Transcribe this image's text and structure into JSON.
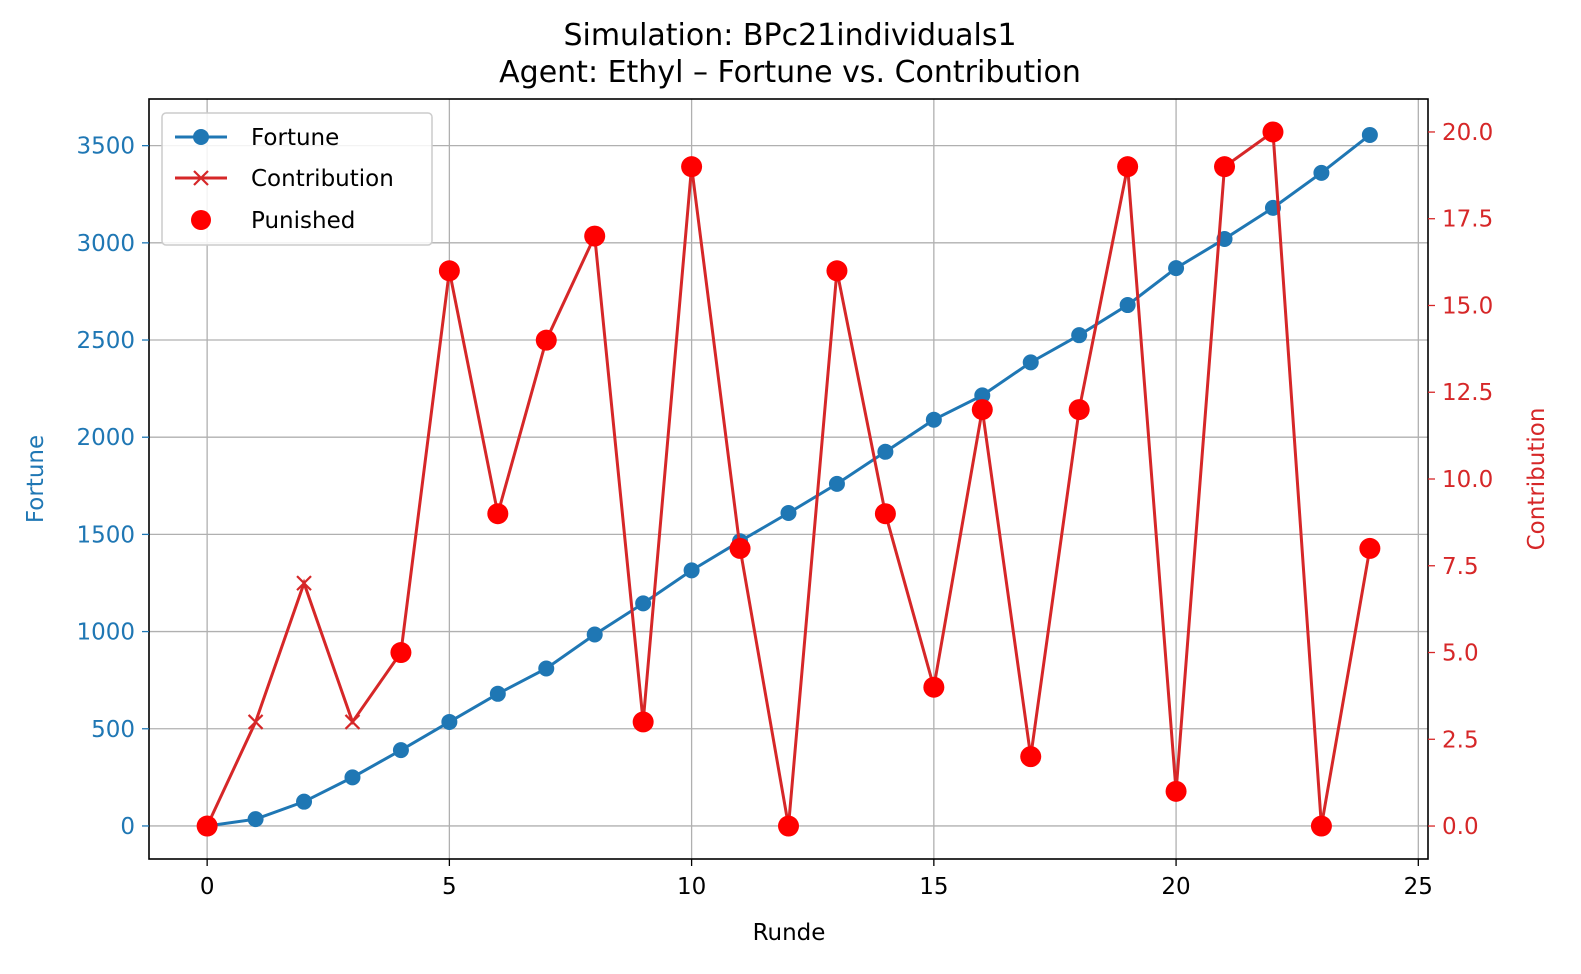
{
  "chart_data": {
    "type": "line",
    "title": "Simulation: BPc21individuals1",
    "subtitle": "Agent: Ethyl – Fortune vs. Contribution",
    "xlabel": "Runde",
    "ylabel_left": "Fortune",
    "ylabel_right": "Contribution",
    "xlim": [
      -1.2,
      25.2
    ],
    "ylim_left": [
      -170,
      3740
    ],
    "ylim_right": [
      -0.95,
      20.95
    ],
    "x_ticks": [
      0,
      5,
      10,
      15,
      20,
      25
    ],
    "y_ticks_left": [
      0,
      500,
      1000,
      1500,
      2000,
      2500,
      3000,
      3500
    ],
    "y_ticks_right": [
      "0.0",
      "2.5",
      "5.0",
      "7.5",
      "10.0",
      "12.5",
      "15.0",
      "17.5",
      "20.0"
    ],
    "grid": true,
    "legend_position": "top-left",
    "colors": {
      "fortune": "#1f77b4",
      "contribution": "#d62728",
      "punished": "#ff0000"
    },
    "series": [
      {
        "name": "Fortune",
        "axis": "left",
        "marker": "circle",
        "x": [
          0,
          1,
          2,
          3,
          4,
          5,
          6,
          7,
          8,
          9,
          10,
          11,
          12,
          13,
          14,
          15,
          16,
          17,
          18,
          19,
          20,
          21,
          22,
          23,
          24
        ],
        "values": [
          0,
          35,
          125,
          250,
          390,
          535,
          680,
          810,
          985,
          1145,
          1315,
          1465,
          1610,
          1760,
          1925,
          2090,
          2215,
          2385,
          2525,
          2680,
          2870,
          3020,
          3180,
          3360,
          3555
        ]
      },
      {
        "name": "Contribution",
        "axis": "right",
        "marker": "x",
        "x": [
          0,
          1,
          2,
          3,
          4,
          5,
          6,
          7,
          8,
          9,
          10,
          11,
          12,
          13,
          14,
          15,
          16,
          17,
          18,
          19,
          20,
          21,
          22,
          23,
          24
        ],
        "values": [
          0,
          3,
          7,
          3,
          5,
          16,
          9,
          14,
          17,
          3,
          19,
          8,
          0,
          16,
          9,
          4,
          12,
          2,
          12,
          19,
          1,
          19,
          20,
          0,
          8
        ]
      },
      {
        "name": "Punished",
        "axis": "right",
        "marker": "circle-large",
        "x": [
          0,
          4,
          5,
          6,
          7,
          8,
          9,
          10,
          11,
          12,
          13,
          14,
          15,
          16,
          17,
          18,
          19,
          20,
          21,
          22,
          23,
          24
        ],
        "values": [
          0,
          5,
          16,
          9,
          14,
          17,
          3,
          19,
          8,
          0,
          16,
          9,
          4,
          12,
          2,
          12,
          19,
          1,
          19,
          20,
          0,
          8
        ]
      }
    ]
  }
}
